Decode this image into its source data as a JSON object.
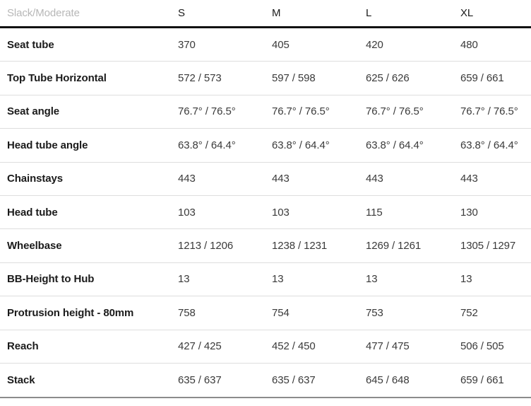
{
  "chart_data": {
    "type": "table",
    "title": "Slack/Moderate",
    "header": {
      "label": "Slack/Moderate",
      "columns": [
        "S",
        "M",
        "L",
        "XL"
      ]
    },
    "rows": [
      {
        "label": "Seat tube",
        "values": [
          "370",
          "405",
          "420",
          "480"
        ]
      },
      {
        "label": "Top Tube Horizontal",
        "values": [
          "572 / 573",
          "597 / 598",
          "625 / 626",
          "659 / 661"
        ]
      },
      {
        "label": "Seat angle",
        "values": [
          "76.7° / 76.5°",
          "76.7° / 76.5°",
          "76.7° / 76.5°",
          "76.7° / 76.5°"
        ]
      },
      {
        "label": "Head tube angle",
        "values": [
          "63.8° / 64.4°",
          "63.8° / 64.4°",
          "63.8° / 64.4°",
          "63.8° / 64.4°"
        ]
      },
      {
        "label": "Chainstays",
        "values": [
          "443",
          "443",
          "443",
          "443"
        ]
      },
      {
        "label": "Head tube",
        "values": [
          "103",
          "103",
          "115",
          "130"
        ]
      },
      {
        "label": "Wheelbase",
        "values": [
          "1213 / 1206",
          "1238 / 1231",
          "1269 / 1261",
          "1305 / 1297"
        ]
      },
      {
        "label": "BB-Height to Hub",
        "values": [
          "13",
          "13",
          "13",
          "13"
        ]
      },
      {
        "label": "Protrusion height - 80mm",
        "values": [
          "758",
          "754",
          "753",
          "752"
        ]
      },
      {
        "label": "Reach",
        "values": [
          "427 / 425",
          "452 / 450",
          "477 / 475",
          "506 / 505"
        ]
      },
      {
        "label": "Stack",
        "values": [
          "635 / 637",
          "635 / 637",
          "645 / 648",
          "659 / 661"
        ]
      }
    ],
    "layout": {
      "grid": "horizontal row dividers only",
      "header_rule_color": "#121212",
      "divider_color": "#dedede",
      "bottom_border_color": "#8c8c8c",
      "header_label_color": "#b7b7b7",
      "row_label_color": "#1b1b1b",
      "value_color": "#3a3a3a"
    }
  }
}
